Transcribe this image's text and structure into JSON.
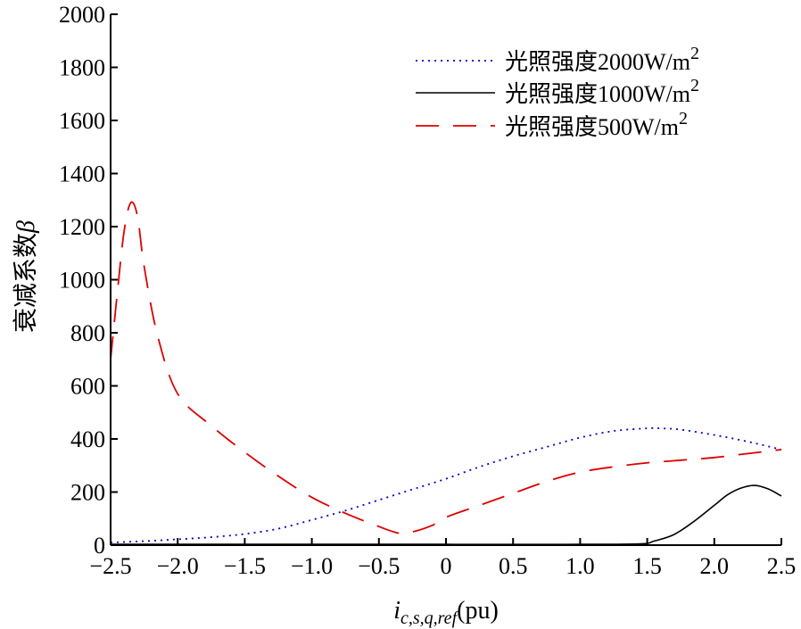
{
  "chart_data": {
    "type": "line",
    "title": "",
    "xlabel": {
      "base": "i",
      "sub": "c,s,q,ref",
      "unit": "(pu)"
    },
    "ylabel": {
      "text": "衰减系数",
      "symbol": "β"
    },
    "xlim": [
      -2.5,
      2.5
    ],
    "ylim": [
      0,
      2000
    ],
    "xticks": [
      -2.5,
      -2.0,
      -1.5,
      -1.0,
      -0.5,
      0,
      0.5,
      1.0,
      1.5,
      2.0,
      2.5
    ],
    "xtick_labels": [
      "−2.5",
      "−2.0",
      "−1.5",
      "−1.0",
      "−0.5",
      "0",
      "0.5",
      "1.0",
      "1.5",
      "2.0",
      "2.5"
    ],
    "yticks": [
      0,
      200,
      400,
      600,
      800,
      1000,
      1200,
      1400,
      1600,
      1800,
      2000
    ],
    "ytick_labels": [
      "0",
      "200",
      "400",
      "600",
      "800",
      "1000",
      "1200",
      "1400",
      "1600",
      "1800",
      "2000"
    ],
    "grid": false,
    "legend_position": "top-right",
    "series": [
      {
        "name": "光照强度2000W/m",
        "name_sup": "2",
        "color": "#0000cc",
        "style": "dotted",
        "x": [
          -2.5,
          -2.25,
          -2.0,
          -1.75,
          -1.5,
          -1.25,
          -1.0,
          -0.75,
          -0.5,
          -0.25,
          0,
          0.25,
          0.5,
          0.75,
          1.0,
          1.25,
          1.5,
          1.6,
          1.75,
          2.0,
          2.25,
          2.5
        ],
        "y": [
          10,
          15,
          22,
          30,
          42,
          62,
          95,
          130,
          170,
          210,
          250,
          295,
          335,
          370,
          405,
          430,
          440,
          440,
          435,
          415,
          390,
          360
        ]
      },
      {
        "name": "光照强度1000W/m",
        "name_sup": "2",
        "color": "#000000",
        "style": "solid",
        "x": [
          -2.5,
          -1.0,
          0,
          1.0,
          1.45,
          1.55,
          1.7,
          1.85,
          2.0,
          2.1,
          2.2,
          2.3,
          2.4,
          2.5
        ],
        "y": [
          3,
          3,
          3,
          3,
          5,
          15,
          40,
          90,
          150,
          190,
          215,
          225,
          212,
          185
        ]
      },
      {
        "name": "光照强度500W/m",
        "name_sup": "2",
        "color": "#dd0000",
        "style": "dashed",
        "x": [
          -2.5,
          -2.45,
          -2.4,
          -2.35,
          -2.3,
          -2.25,
          -2.15,
          -2.0,
          -1.75,
          -1.5,
          -1.25,
          -1.0,
          -0.75,
          -0.5,
          -0.35,
          -0.25,
          -0.1,
          0,
          0.25,
          0.5,
          0.75,
          1.0,
          1.25,
          1.5,
          1.75,
          2.0,
          2.25,
          2.5
        ],
        "y": [
          700,
          950,
          1180,
          1290,
          1240,
          1050,
          790,
          570,
          450,
          350,
          260,
          180,
          120,
          70,
          45,
          50,
          75,
          105,
          150,
          195,
          240,
          275,
          295,
          310,
          320,
          330,
          345,
          360
        ]
      }
    ]
  }
}
